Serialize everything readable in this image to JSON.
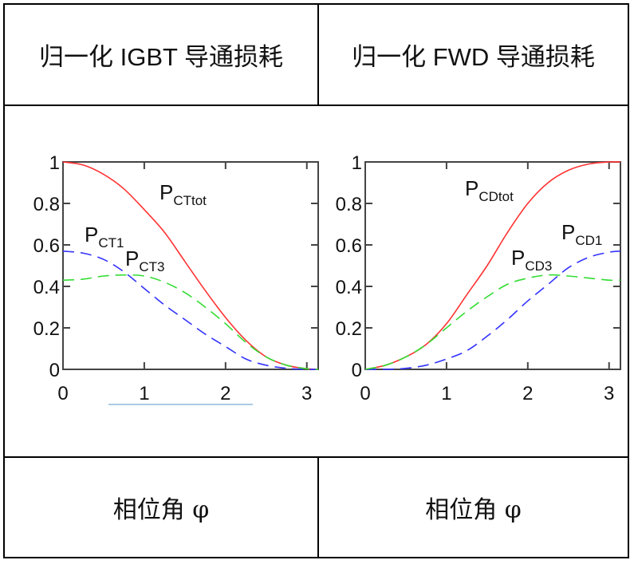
{
  "header": {
    "left_title": "归一化 IGBT 导通损耗",
    "right_title": "归一化 FWD 导通损耗"
  },
  "footer": {
    "left_label": "相位角 φ",
    "right_label": "相位角 φ"
  },
  "colors": {
    "total": "#ff3333",
    "fundamental": "#3333ff",
    "third": "#33dd33",
    "axis": "#444444",
    "underline": "#8fb8dd"
  },
  "chart_data": [
    {
      "type": "line",
      "title": "归一化 IGBT 导通损耗",
      "xlabel": "相位角 φ",
      "ylabel": "",
      "xlim": [
        0,
        3.14
      ],
      "ylim": [
        0,
        1
      ],
      "xticks": [
        "0",
        "1",
        "2",
        "3"
      ],
      "yticks": [
        "0",
        "0.2",
        "0.4",
        "0.6",
        "0.8",
        "1"
      ],
      "grid": false,
      "x": [
        0,
        0.25,
        0.5,
        0.75,
        1.0,
        1.25,
        1.5,
        1.75,
        2.0,
        2.25,
        2.5,
        2.75,
        3.0,
        3.14
      ],
      "series": [
        {
          "name": "PCTtot",
          "style": "solid",
          "color": "#ff3333",
          "values": [
            1.0,
            0.985,
            0.94,
            0.87,
            0.77,
            0.66,
            0.52,
            0.38,
            0.25,
            0.14,
            0.06,
            0.02,
            0.003,
            0.0
          ]
        },
        {
          "name": "PCT1",
          "style": "dashed",
          "color": "#3333ff",
          "values": [
            0.57,
            0.56,
            0.53,
            0.47,
            0.39,
            0.31,
            0.24,
            0.17,
            0.11,
            0.05,
            0.02,
            0.005,
            0.0,
            0.0
          ]
        },
        {
          "name": "PCT3",
          "style": "dashed",
          "color": "#33dd33",
          "values": [
            0.43,
            0.435,
            0.45,
            0.455,
            0.45,
            0.42,
            0.37,
            0.3,
            0.22,
            0.13,
            0.06,
            0.02,
            0.003,
            0.0
          ]
        }
      ],
      "annotations": [
        "PCTtot",
        "PCT1",
        "PCT3"
      ]
    },
    {
      "type": "line",
      "title": "归一化 FWD 导通损耗",
      "xlabel": "相位角 φ",
      "ylabel": "",
      "xlim": [
        0,
        3.14
      ],
      "ylim": [
        0,
        1
      ],
      "xticks": [
        "0",
        "1",
        "2",
        "3"
      ],
      "yticks": [
        "0",
        "0.2",
        "0.4",
        "0.6",
        "0.8",
        "1"
      ],
      "grid": false,
      "x": [
        0,
        0.25,
        0.5,
        0.75,
        1.0,
        1.25,
        1.5,
        1.75,
        2.0,
        2.25,
        2.5,
        2.75,
        3.0,
        3.14
      ],
      "series": [
        {
          "name": "PCDtot",
          "style": "solid",
          "color": "#ff3333",
          "values": [
            0.0,
            0.02,
            0.06,
            0.12,
            0.22,
            0.36,
            0.5,
            0.66,
            0.8,
            0.9,
            0.96,
            0.99,
            1.0,
            1.0
          ]
        },
        {
          "name": "PCD1",
          "style": "dashed",
          "color": "#3333ff",
          "values": [
            0.0,
            0.0,
            0.005,
            0.02,
            0.05,
            0.09,
            0.16,
            0.24,
            0.33,
            0.41,
            0.49,
            0.54,
            0.565,
            0.57
          ]
        },
        {
          "name": "PCD3",
          "style": "dashed",
          "color": "#33dd33",
          "values": [
            0.0,
            0.02,
            0.06,
            0.12,
            0.2,
            0.28,
            0.35,
            0.41,
            0.44,
            0.455,
            0.45,
            0.44,
            0.43,
            0.43
          ]
        }
      ],
      "annotations": [
        "PCDtot",
        "PCD1",
        "PCD3"
      ]
    }
  ]
}
